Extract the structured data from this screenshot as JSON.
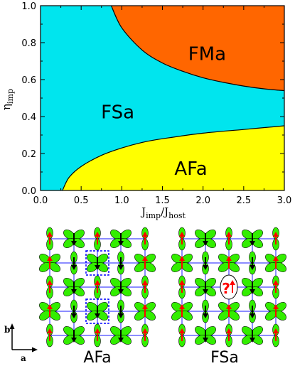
{
  "chart_data": {
    "type": "area",
    "title": "",
    "xlabel": {
      "main": "J",
      "sub1": "imp",
      "mid": "/J",
      "sub2": "host"
    },
    "ylabel": {
      "main": "η",
      "sub": "imp"
    },
    "xlim": [
      0.0,
      3.0
    ],
    "ylim": [
      0.0,
      1.0
    ],
    "xticks": [
      "0.0",
      "0.5",
      "1.0",
      "1.5",
      "2.0",
      "2.5",
      "3.0"
    ],
    "yticks": [
      "0.0",
      "0.2",
      "0.4",
      "0.6",
      "0.8",
      "1.0"
    ],
    "grid": false,
    "regions": [
      {
        "label": "FMa",
        "color": "#ff6600"
      },
      {
        "label": "FSa",
        "color": "#00e5ee"
      },
      {
        "label": "AFa",
        "color": "#ffff00"
      }
    ],
    "boundaries": [
      {
        "between": "FSa-FMa",
        "x": [
          0.87,
          1.0,
          1.25,
          1.5,
          1.75,
          2.0,
          2.25,
          2.5,
          2.75,
          3.0
        ],
        "y": [
          1.0,
          0.88,
          0.76,
          0.69,
          0.645,
          0.61,
          0.585,
          0.565,
          0.55,
          0.54
        ]
      },
      {
        "between": "AFa-FSa",
        "x": [
          0.27,
          0.35,
          0.5,
          0.75,
          1.0,
          1.25,
          1.5,
          2.0,
          2.5,
          3.0
        ],
        "y": [
          0.0,
          0.07,
          0.13,
          0.19,
          0.23,
          0.26,
          0.28,
          0.31,
          0.33,
          0.35
        ]
      }
    ],
    "region_label_positions": [
      {
        "label": "FMa",
        "x": 2.05,
        "y": 0.74
      },
      {
        "label": "FSa",
        "x": 0.95,
        "y": 0.425
      },
      {
        "label": "AFa",
        "x": 1.85,
        "y": 0.12
      }
    ]
  },
  "lattice_panels": {
    "captions": [
      "AFa",
      "FSa"
    ],
    "axis_labels": {
      "b": "b",
      "a": "a"
    },
    "fsa_question_mark": "?",
    "colors": {
      "orbital": "#33ee00",
      "spin_up": "#ff0000",
      "spin_down": "#000000",
      "bond": "#1a1aff",
      "impurity_box": "#0000ff"
    }
  }
}
